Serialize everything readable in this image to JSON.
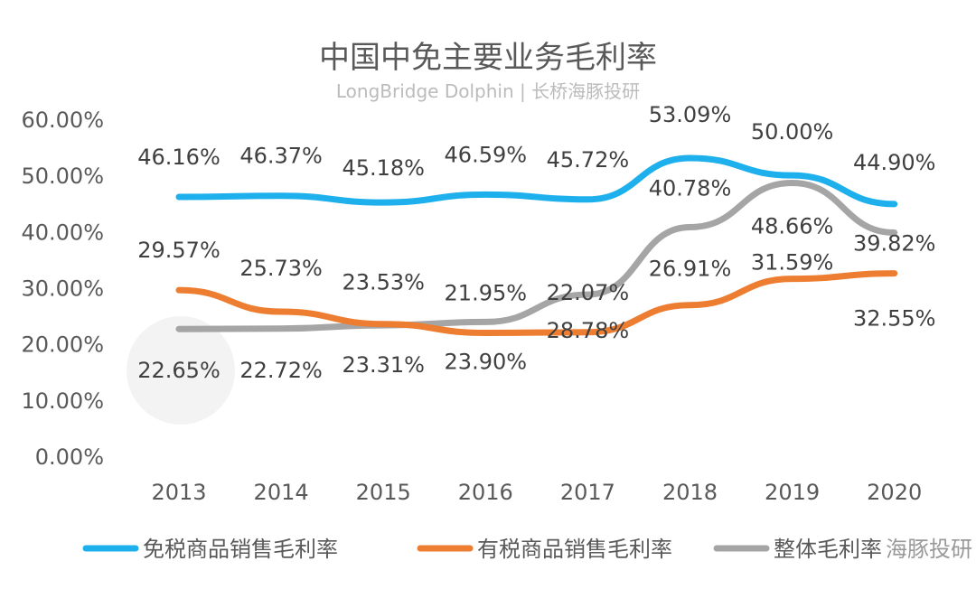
{
  "chart_data": {
    "type": "line",
    "title": "中国中免主要业务毛利率",
    "categories": [
      "2013",
      "2014",
      "2015",
      "2016",
      "2017",
      "2018",
      "2019",
      "2020"
    ],
    "ylim": [
      0,
      60
    ],
    "yticks": [
      "0.00%",
      "10.00%",
      "20.00%",
      "30.00%",
      "40.00%",
      "50.00%",
      "60.00%"
    ],
    "grid": false,
    "legend_position": "bottom",
    "series": [
      {
        "name": "免税商品销售毛利率",
        "color": "#1EB0EC",
        "values": [
          46.16,
          46.37,
          45.18,
          46.59,
          45.72,
          53.09,
          50.0,
          44.9
        ],
        "labels": [
          "46.16%",
          "46.37%",
          "45.18%",
          "46.59%",
          "45.72%",
          "53.09%",
          "50.00%",
          "44.90%"
        ]
      },
      {
        "name": "有税商品销售毛利率",
        "color": "#ED7D31",
        "values": [
          29.57,
          25.73,
          23.53,
          21.95,
          22.07,
          26.91,
          31.59,
          32.55
        ],
        "labels": [
          "29.57%",
          "25.73%",
          "23.53%",
          "21.95%",
          "22.07%",
          "26.91%",
          "31.59%",
          "32.55%"
        ]
      },
      {
        "name": "整体毛利率",
        "color": "#A5A5A5",
        "values": [
          22.65,
          22.72,
          23.31,
          23.9,
          28.78,
          40.78,
          48.66,
          39.82
        ],
        "labels": [
          "22.65%",
          "22.72%",
          "23.31%",
          "23.90%",
          "28.78%",
          "40.78%",
          "48.66%",
          "39.82%"
        ]
      }
    ]
  },
  "watermark": {
    "text": "LongBridge Dolphin | 长桥海豚投研",
    "corner": "海豚投研"
  }
}
